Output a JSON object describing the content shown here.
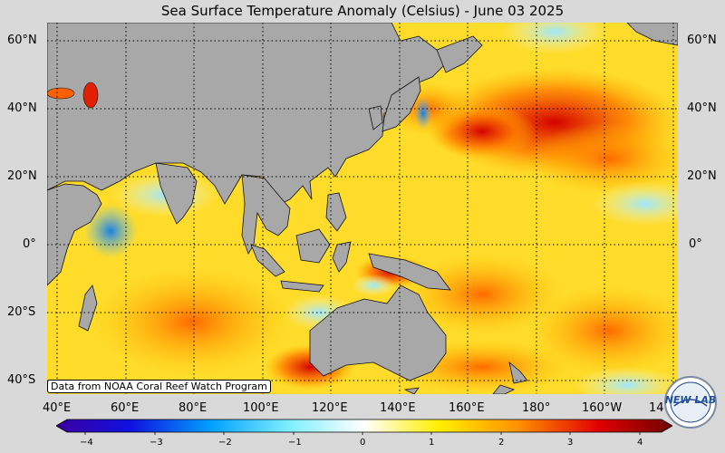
{
  "title": "Sea Surface Temperature Anomaly (Celsius) - June 03 2025",
  "credit": "Data from NOAA Coral Reef Watch Program",
  "lat_labels": [
    "60°N",
    "40°N",
    "20°N",
    "0°",
    "20°S",
    "40°S"
  ],
  "lon_labels": [
    "40°E",
    "60°E",
    "80°E",
    "100°E",
    "120°E",
    "140°E",
    "160°E",
    "180°",
    "160°W",
    "14"
  ],
  "colorbar": {
    "ticks": [
      "−4",
      "−3",
      "−2",
      "−1",
      "0",
      "1",
      "2",
      "3",
      "4"
    ],
    "colors": [
      "#3a00a0",
      "#0050ff",
      "#40c8ff",
      "#ffffff",
      "#ffe000",
      "#ff8000",
      "#e00000",
      "#700000"
    ]
  },
  "logo": {
    "text": "NEW LAB"
  }
}
